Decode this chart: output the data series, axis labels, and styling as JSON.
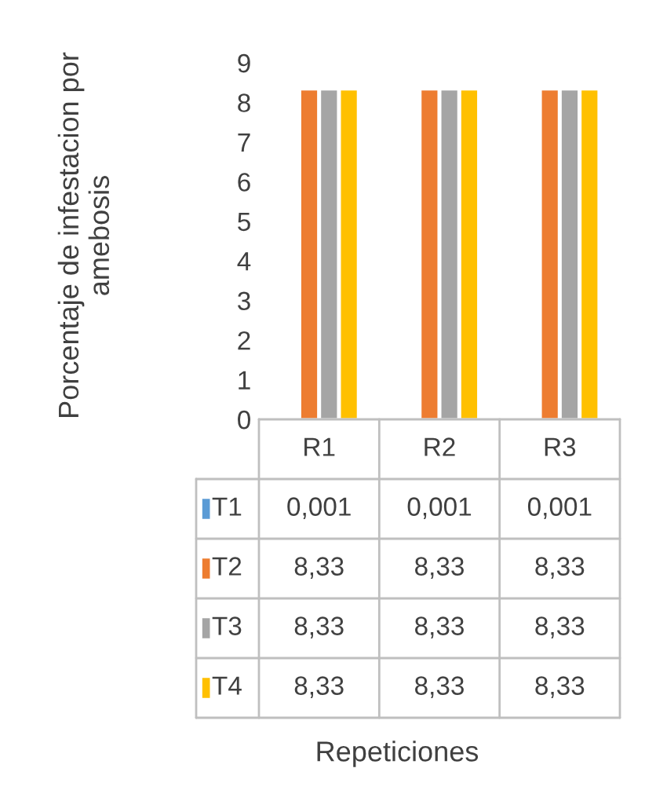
{
  "chart_data": {
    "type": "bar",
    "ylabel": "Porcentaje de infestacion por amebosis",
    "annotations": [
      "Repeticiones"
    ],
    "categories": [
      "R1",
      "R2",
      "R3"
    ],
    "series": [
      {
        "name": "T1",
        "color": "#5b9bd5",
        "values": [
          0.001,
          0.001,
          0.001
        ],
        "value_labels": [
          "0,001",
          "0,001",
          "0,001"
        ]
      },
      {
        "name": "T2",
        "color": "#ed7d31",
        "values": [
          8.33,
          8.33,
          8.33
        ],
        "value_labels": [
          "8,33",
          "8,33",
          "8,33"
        ]
      },
      {
        "name": "T3",
        "color": "#a5a5a5",
        "values": [
          8.33,
          8.33,
          8.33
        ],
        "value_labels": [
          "8,33",
          "8,33",
          "8,33"
        ]
      },
      {
        "name": "T4",
        "color": "#ffc000",
        "values": [
          8.33,
          8.33,
          8.33
        ],
        "value_labels": [
          "8,33",
          "8,33",
          "8,33"
        ]
      }
    ],
    "ylim": [
      0,
      9
    ],
    "yticks": [
      0,
      1,
      2,
      3,
      4,
      5,
      6,
      7,
      8,
      9
    ],
    "grid": false,
    "legend": "bottom"
  }
}
